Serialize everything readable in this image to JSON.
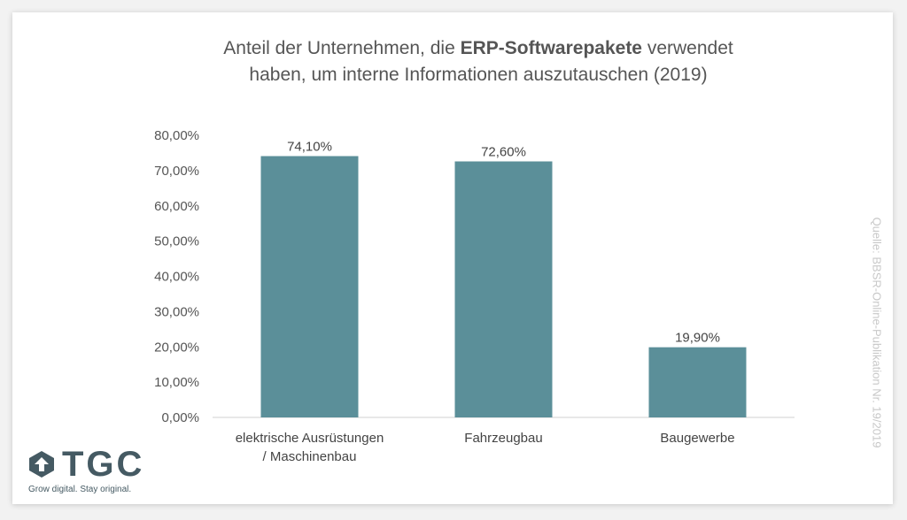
{
  "title": {
    "line1_pre": "Anteil der Unternehmen, die ",
    "line1_bold": "ERP-Softwarepakete",
    "line1_post": " verwendet",
    "line2": "haben, um interne Informationen auszutauschen (2019)"
  },
  "source": "Quelle: BBSR-Online-Publikation Nr. 19/2019",
  "logo": {
    "name": "TGC",
    "slogan": "Grow digital. Stay original.",
    "color": "#455a63"
  },
  "colors": {
    "bar": "#5b8f99",
    "text": "#555555",
    "axis": "#d0d0d0"
  },
  "chart_data": {
    "type": "bar",
    "categories": [
      [
        "elektrische Ausrüstungen",
        "/ Maschinenbau"
      ],
      [
        "Fahrzeugbau"
      ],
      [
        "Baugewerbe"
      ]
    ],
    "values": [
      74.1,
      72.6,
      19.9
    ],
    "value_labels": [
      "74,10%",
      "72,60%",
      "19,90%"
    ],
    "ylim": [
      0,
      80
    ],
    "yticks": [
      0,
      10,
      20,
      30,
      40,
      50,
      60,
      70,
      80
    ],
    "ytick_labels": [
      "0,00%",
      "10,00%",
      "20,00%",
      "30,00%",
      "40,00%",
      "50,00%",
      "60,00%",
      "70,00%",
      "80,00%"
    ],
    "grid": false,
    "legend": "none"
  }
}
